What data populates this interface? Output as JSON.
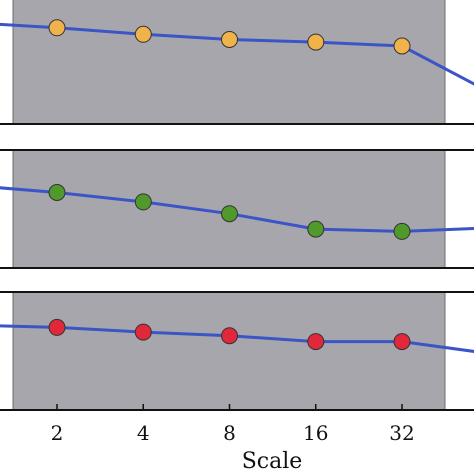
{
  "chart_data": {
    "type": "line",
    "x_ticks": [
      "2",
      "4",
      "8",
      "16",
      "32"
    ],
    "xlabel": "Scale",
    "grid": false,
    "line_color": "#3b55c7",
    "band_color": "#a8a6ad",
    "panels": [
      {
        "marker_color": "#f0b24a",
        "x": [
          1,
          2,
          4,
          8,
          16,
          32,
          64
        ],
        "values": [
          0.78,
          0.74,
          0.69,
          0.65,
          0.63,
          0.6,
          0.25
        ],
        "marked_points": [
          2,
          4,
          8,
          16,
          32
        ],
        "ylim": [
          0,
          1
        ]
      },
      {
        "marker_color": "#4f9a2b",
        "x": [
          1,
          2,
          4,
          8,
          16,
          32,
          64
        ],
        "values": [
          0.7,
          0.64,
          0.56,
          0.46,
          0.33,
          0.31,
          0.34
        ],
        "marked_points": [
          2,
          4,
          8,
          16,
          32
        ],
        "ylim": [
          0,
          1
        ]
      },
      {
        "marker_color": "#e0283a",
        "x": [
          1,
          2,
          4,
          8,
          16,
          32,
          64
        ],
        "values": [
          0.72,
          0.7,
          0.66,
          0.63,
          0.58,
          0.58,
          0.48
        ],
        "marked_points": [
          2,
          4,
          8,
          16,
          32
        ],
        "ylim": [
          0,
          1
        ]
      }
    ]
  }
}
